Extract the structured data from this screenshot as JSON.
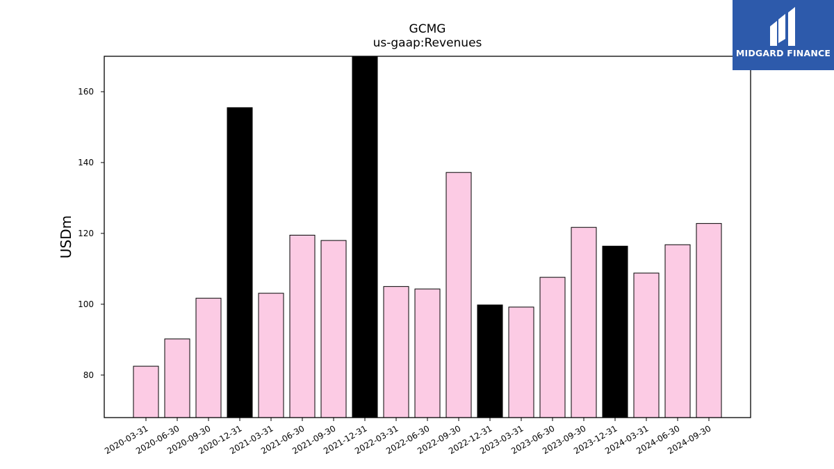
{
  "chart_data": {
    "type": "bar",
    "title": "GCMG",
    "subtitle": "us-gaap:Revenues",
    "xlabel": "",
    "ylabel": "USDm",
    "ylim": [
      68,
      170
    ],
    "yticks": [
      80,
      100,
      120,
      140,
      160
    ],
    "grid": false,
    "categories": [
      "2020-03-31",
      "2020-06-30",
      "2020-09-30",
      "2020-12-31",
      "2021-03-31",
      "2021-06-30",
      "2021-09-30",
      "2021-12-31",
      "2022-03-31",
      "2022-06-30",
      "2022-09-30",
      "2022-12-31",
      "2023-03-31",
      "2023-06-30",
      "2023-09-30",
      "2023-12-31",
      "2024-03-31",
      "2024-06-30",
      "2024-09-30"
    ],
    "values": [
      82.5,
      90.2,
      101.7,
      155.5,
      103.1,
      119.5,
      118.0,
      170.0,
      105.0,
      104.3,
      137.2,
      99.8,
      99.2,
      107.6,
      121.7,
      116.4,
      108.8,
      116.8,
      122.8
    ],
    "colors": {
      "quarter": "#fccbe4",
      "year_end": "#000000",
      "edge": "#000000"
    },
    "highlight_categories": [
      "2020-12-31",
      "2021-12-31",
      "2022-12-31",
      "2023-12-31"
    ]
  },
  "logo": {
    "text": "MIDGARD FINANCE",
    "background": "#2d5aab"
  }
}
